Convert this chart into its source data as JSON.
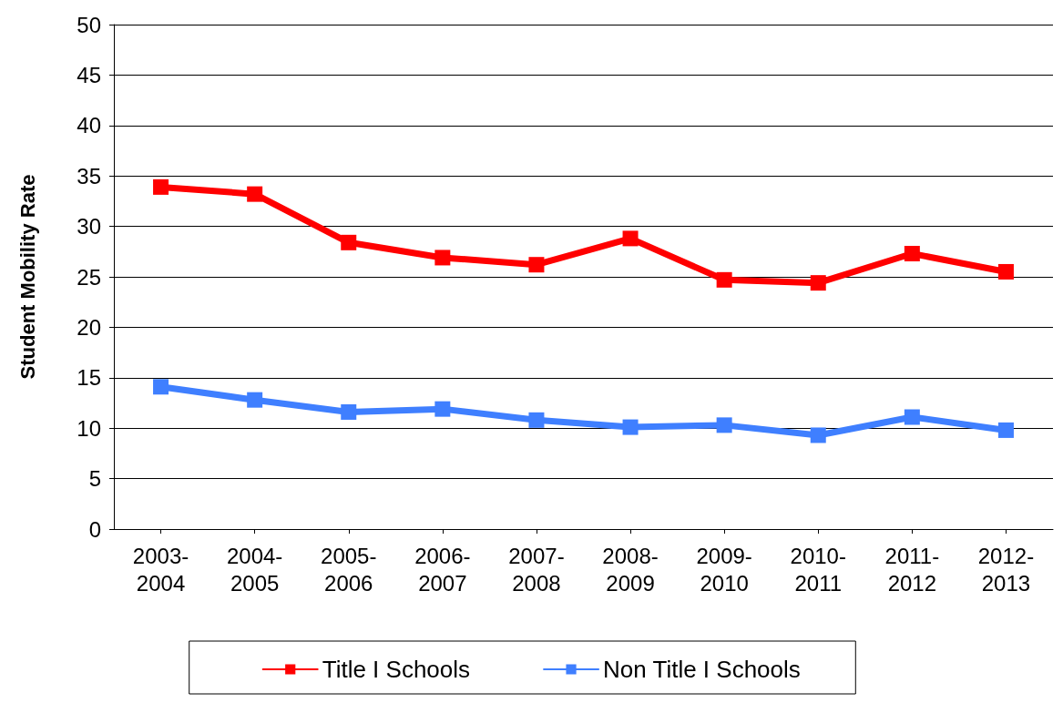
{
  "chart_data": {
    "type": "line",
    "ylabel": "Student Mobility Rate",
    "categories": [
      "2003-2004",
      "2004-2005",
      "2005-2006",
      "2006-2007",
      "2007-2008",
      "2008-2009",
      "2009-2010",
      "2010-2011",
      "2011-2012",
      "2012-2013"
    ],
    "series": [
      {
        "name": "Title I Schools",
        "color": "#ff0000",
        "values": [
          33.9,
          33.2,
          28.4,
          26.9,
          26.2,
          28.8,
          24.7,
          24.4,
          27.3,
          25.5
        ]
      },
      {
        "name": "Non Title I Schools",
        "color": "#3f7fff",
        "values": [
          14.1,
          12.8,
          11.6,
          11.9,
          10.8,
          10.1,
          10.3,
          9.3,
          11.1,
          9.8
        ]
      }
    ],
    "ylim": [
      0,
      50
    ],
    "yticks": [
      0,
      5,
      10,
      15,
      20,
      25,
      30,
      35,
      40,
      45,
      50
    ],
    "grid": "y",
    "legend": "bottom",
    "marker": "square",
    "line_style": "solid"
  }
}
